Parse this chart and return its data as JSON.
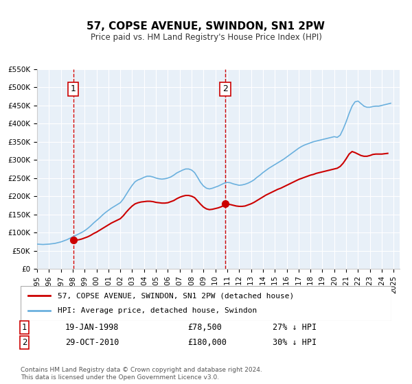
{
  "title": "57, COPSE AVENUE, SWINDON, SN1 2PW",
  "subtitle": "Price paid vs. HM Land Registry's House Price Index (HPI)",
  "ylim": [
    0,
    550000
  ],
  "yticks": [
    0,
    50000,
    100000,
    150000,
    200000,
    250000,
    300000,
    350000,
    400000,
    450000,
    500000,
    550000
  ],
  "ytick_labels": [
    "£0",
    "£50K",
    "£100K",
    "£150K",
    "£200K",
    "£250K",
    "£300K",
    "£350K",
    "£400K",
    "£450K",
    "£500K",
    "£550K"
  ],
  "xlim_start": 1995.0,
  "xlim_end": 2025.5,
  "xtick_years": [
    1995,
    1996,
    1997,
    1998,
    1999,
    2000,
    2001,
    2002,
    2003,
    2004,
    2005,
    2006,
    2007,
    2008,
    2009,
    2010,
    2011,
    2012,
    2013,
    2014,
    2015,
    2016,
    2017,
    2018,
    2019,
    2020,
    2021,
    2022,
    2023,
    2024,
    2025
  ],
  "transaction1_x": 1998.05,
  "transaction1_y": 78500,
  "transaction2_x": 2010.83,
  "transaction2_y": 180000,
  "vline1_x": 1998.05,
  "vline2_x": 2010.83,
  "label1_text": "1",
  "label2_text": "2",
  "hpi_color": "#6ab0de",
  "price_color": "#cc0000",
  "vline_color": "#cc0000",
  "background_color": "#e8f0f8",
  "plot_bg_color": "#e8f0f8",
  "grid_color": "#ffffff",
  "legend_label1": "57, COPSE AVENUE, SWINDON, SN1 2PW (detached house)",
  "legend_label2": "HPI: Average price, detached house, Swindon",
  "annotation1_date": "19-JAN-1998",
  "annotation1_price": "£78,500",
  "annotation1_hpi": "27% ↓ HPI",
  "annotation2_date": "29-OCT-2010",
  "annotation2_price": "£180,000",
  "annotation2_hpi": "30% ↓ HPI",
  "footer1": "Contains HM Land Registry data © Crown copyright and database right 2024.",
  "footer2": "This data is licensed under the Open Government Licence v3.0.",
  "hpi_data_x": [
    1995.0,
    1995.25,
    1995.5,
    1995.75,
    1996.0,
    1996.25,
    1996.5,
    1996.75,
    1997.0,
    1997.25,
    1997.5,
    1997.75,
    1998.0,
    1998.25,
    1998.5,
    1998.75,
    1999.0,
    1999.25,
    1999.5,
    1999.75,
    2000.0,
    2000.25,
    2000.5,
    2000.75,
    2001.0,
    2001.25,
    2001.5,
    2001.75,
    2002.0,
    2002.25,
    2002.5,
    2002.75,
    2003.0,
    2003.25,
    2003.5,
    2003.75,
    2004.0,
    2004.25,
    2004.5,
    2004.75,
    2005.0,
    2005.25,
    2005.5,
    2005.75,
    2006.0,
    2006.25,
    2006.5,
    2006.75,
    2007.0,
    2007.25,
    2007.5,
    2007.75,
    2008.0,
    2008.25,
    2008.5,
    2008.75,
    2009.0,
    2009.25,
    2009.5,
    2009.75,
    2010.0,
    2010.25,
    2010.5,
    2010.75,
    2011.0,
    2011.25,
    2011.5,
    2011.75,
    2012.0,
    2012.25,
    2012.5,
    2012.75,
    2013.0,
    2013.25,
    2013.5,
    2013.75,
    2014.0,
    2014.25,
    2014.5,
    2014.75,
    2015.0,
    2015.25,
    2015.5,
    2015.75,
    2016.0,
    2016.25,
    2016.5,
    2016.75,
    2017.0,
    2017.25,
    2017.5,
    2017.75,
    2018.0,
    2018.25,
    2018.5,
    2018.75,
    2019.0,
    2019.25,
    2019.5,
    2019.75,
    2020.0,
    2020.25,
    2020.5,
    2020.75,
    2021.0,
    2021.25,
    2021.5,
    2021.75,
    2022.0,
    2022.25,
    2022.5,
    2022.75,
    2023.0,
    2023.25,
    2023.5,
    2023.75,
    2024.0,
    2024.25,
    2024.5,
    2024.75
  ],
  "hpi_data_y": [
    68000,
    67500,
    67000,
    67500,
    68000,
    69000,
    70000,
    72000,
    74000,
    77000,
    80000,
    84000,
    88000,
    92000,
    96000,
    100000,
    105000,
    111000,
    118000,
    126000,
    133000,
    140000,
    148000,
    155000,
    161000,
    167000,
    172000,
    177000,
    182000,
    192000,
    205000,
    218000,
    230000,
    240000,
    245000,
    248000,
    252000,
    255000,
    255000,
    253000,
    250000,
    248000,
    247000,
    248000,
    250000,
    253000,
    258000,
    264000,
    268000,
    272000,
    275000,
    275000,
    272000,
    265000,
    252000,
    238000,
    228000,
    222000,
    220000,
    222000,
    225000,
    228000,
    232000,
    236000,
    238000,
    237000,
    234000,
    232000,
    230000,
    231000,
    233000,
    236000,
    240000,
    245000,
    252000,
    258000,
    265000,
    271000,
    277000,
    282000,
    287000,
    292000,
    297000,
    302000,
    308000,
    314000,
    320000,
    326000,
    332000,
    337000,
    341000,
    344000,
    347000,
    350000,
    352000,
    354000,
    356000,
    358000,
    360000,
    362000,
    364000,
    362000,
    368000,
    385000,
    405000,
    428000,
    448000,
    460000,
    462000,
    455000,
    448000,
    445000,
    445000,
    447000,
    448000,
    448000,
    450000,
    452000,
    454000,
    456000
  ],
  "price_data_x": [
    1995.0,
    1995.25,
    1995.5,
    1995.75,
    1996.0,
    1996.25,
    1996.5,
    1996.75,
    1997.0,
    1997.25,
    1997.5,
    1997.75,
    1998.0,
    1998.25,
    1998.5,
    1998.75,
    1999.0,
    1999.25,
    1999.5,
    1999.75,
    2000.0,
    2000.25,
    2000.5,
    2000.75,
    2001.0,
    2001.25,
    2001.5,
    2001.75,
    2002.0,
    2002.25,
    2002.5,
    2002.75,
    2003.0,
    2003.25,
    2003.5,
    2003.75,
    2004.0,
    2004.25,
    2004.5,
    2004.75,
    2005.0,
    2005.25,
    2005.5,
    2005.75,
    2006.0,
    2006.25,
    2006.5,
    2006.75,
    2007.0,
    2007.25,
    2007.5,
    2007.75,
    2008.0,
    2008.25,
    2008.5,
    2008.75,
    2009.0,
    2009.25,
    2009.5,
    2009.75,
    2010.0,
    2010.25,
    2010.5,
    2010.75,
    2011.0,
    2011.25,
    2011.5,
    2011.75,
    2012.0,
    2012.25,
    2012.5,
    2012.75,
    2013.0,
    2013.25,
    2013.5,
    2013.75,
    2014.0,
    2014.25,
    2014.5,
    2014.75,
    2015.0,
    2015.25,
    2015.5,
    2015.75,
    2016.0,
    2016.25,
    2016.5,
    2016.75,
    2017.0,
    2017.25,
    2017.5,
    2017.75,
    2018.0,
    2018.25,
    2018.5,
    2018.75,
    2019.0,
    2019.25,
    2019.5,
    2019.75,
    2020.0,
    2020.25,
    2020.5,
    2020.75,
    2021.0,
    2021.25,
    2021.5,
    2021.75,
    2022.0,
    2022.25,
    2022.5,
    2022.75,
    2023.0,
    2023.25,
    2023.5,
    2023.75,
    2024.0,
    2024.25,
    2024.5
  ],
  "price_data_y": [
    null,
    null,
    null,
    null,
    null,
    null,
    null,
    null,
    null,
    null,
    null,
    null,
    78500,
    79000,
    80000,
    82000,
    85000,
    88000,
    92000,
    97000,
    101000,
    106000,
    111000,
    116000,
    121000,
    126000,
    130000,
    134000,
    138000,
    146000,
    156000,
    165000,
    173000,
    179000,
    182000,
    184000,
    185000,
    186000,
    186000,
    185000,
    183000,
    182000,
    181000,
    181000,
    182000,
    185000,
    188000,
    193000,
    197000,
    200000,
    202000,
    202000,
    200000,
    196000,
    187000,
    178000,
    170000,
    165000,
    163000,
    164000,
    166000,
    168000,
    171000,
    175000,
    178000,
    177000,
    175000,
    173000,
    172000,
    172000,
    173000,
    176000,
    179000,
    183000,
    188000,
    193000,
    198000,
    203000,
    207000,
    211000,
    215000,
    219000,
    222000,
    226000,
    230000,
    234000,
    238000,
    242000,
    246000,
    249000,
    252000,
    255000,
    258000,
    260000,
    263000,
    265000,
    267000,
    269000,
    271000,
    273000,
    275000,
    277000,
    282000,
    291000,
    303000,
    316000,
    323000,
    320000,
    316000,
    312000,
    310000,
    310000,
    312000,
    315000,
    316000,
    316000,
    316000,
    317000,
    318000
  ]
}
